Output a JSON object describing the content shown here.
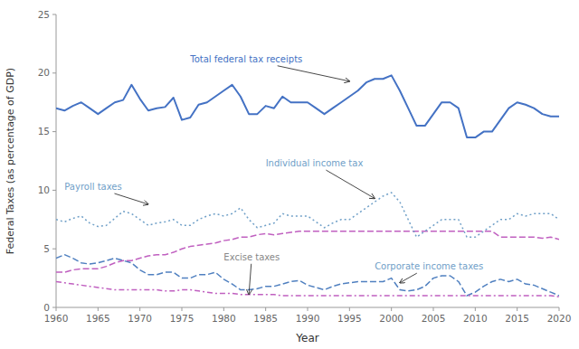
{
  "chart_data": {
    "type": "line",
    "xlabel": "Year",
    "ylabel": "Federal Taxes (as percentage of GDP)",
    "x": [
      1960,
      1961,
      1962,
      1963,
      1964,
      1965,
      1966,
      1967,
      1968,
      1969,
      1970,
      1971,
      1972,
      1973,
      1974,
      1975,
      1976,
      1977,
      1978,
      1979,
      1980,
      1981,
      1982,
      1983,
      1984,
      1985,
      1986,
      1987,
      1988,
      1989,
      1990,
      1991,
      1992,
      1993,
      1994,
      1995,
      1996,
      1997,
      1998,
      1999,
      2000,
      2001,
      2002,
      2003,
      2004,
      2005,
      2006,
      2007,
      2008,
      2009,
      2010,
      2011,
      2012,
      2013,
      2014,
      2015,
      2016,
      2017,
      2018,
      2019,
      2020
    ],
    "series": [
      {
        "color": "#4472c4",
        "line_style": "solid",
        "values": [
          17.0,
          16.8,
          17.2,
          17.5,
          17.0,
          16.5,
          17.0,
          17.5,
          17.7,
          19.0,
          17.8,
          16.8,
          17.0,
          17.1,
          17.9,
          16.0,
          16.2,
          17.3,
          17.5,
          18.0,
          18.5,
          19.0,
          18.0,
          16.5,
          16.5,
          17.2,
          17.0,
          18.0,
          17.5,
          17.5,
          17.5,
          17.0,
          16.5,
          17.0,
          17.5,
          18.0,
          18.5,
          19.2,
          19.5,
          19.5,
          19.8,
          18.5,
          17.0,
          15.5,
          15.5,
          16.5,
          17.5,
          17.5,
          17.0,
          14.5,
          14.5,
          15.0,
          15.0,
          16.0,
          17.0,
          17.5,
          17.3,
          17.0,
          16.5,
          16.3,
          16.3
        ]
      },
      {
        "color": "#70a0c8",
        "line_style": "dotted",
        "values": [
          7.5,
          7.3,
          7.6,
          7.8,
          7.2,
          6.9,
          7.0,
          7.6,
          8.2,
          8.0,
          7.5,
          7.0,
          7.2,
          7.3,
          7.5,
          7.0,
          7.0,
          7.5,
          7.8,
          8.0,
          7.8,
          8.0,
          8.5,
          7.5,
          6.8,
          7.0,
          7.2,
          8.0,
          7.8,
          7.8,
          7.8,
          7.3,
          6.8,
          7.2,
          7.5,
          7.5,
          8.0,
          8.5,
          9.0,
          9.5,
          9.8,
          9.0,
          7.5,
          6.0,
          6.5,
          7.0,
          7.5,
          7.5,
          7.5,
          6.0,
          6.0,
          6.5,
          7.0,
          7.5,
          7.5,
          8.0,
          7.8,
          8.0,
          8.0,
          8.0,
          7.5
        ]
      },
      {
        "color": "#c060c0",
        "line_style": "dashed",
        "values": [
          3.0,
          3.0,
          3.2,
          3.3,
          3.3,
          3.3,
          3.5,
          3.8,
          4.0,
          4.0,
          4.2,
          4.4,
          4.5,
          4.5,
          4.7,
          5.0,
          5.2,
          5.3,
          5.4,
          5.5,
          5.7,
          5.8,
          6.0,
          6.0,
          6.2,
          6.3,
          6.2,
          6.3,
          6.4,
          6.5,
          6.5,
          6.5,
          6.5,
          6.5,
          6.5,
          6.5,
          6.5,
          6.5,
          6.5,
          6.5,
          6.5,
          6.5,
          6.5,
          6.5,
          6.5,
          6.5,
          6.5,
          6.5,
          6.5,
          6.5,
          6.5,
          6.5,
          6.5,
          6.0,
          6.0,
          6.0,
          6.0,
          6.0,
          5.9,
          6.0,
          5.8
        ]
      },
      {
        "color": "#c060c0",
        "line_style": "dashdot",
        "values": [
          2.2,
          2.1,
          2.0,
          1.9,
          1.8,
          1.7,
          1.6,
          1.5,
          1.5,
          1.5,
          1.5,
          1.5,
          1.5,
          1.4,
          1.4,
          1.5,
          1.5,
          1.4,
          1.3,
          1.2,
          1.2,
          1.2,
          1.1,
          1.1,
          1.1,
          1.1,
          1.1,
          1.0,
          1.0,
          1.0,
          1.0,
          1.0,
          1.0,
          1.0,
          1.0,
          1.0,
          1.0,
          1.0,
          1.0,
          1.0,
          1.0,
          1.0,
          1.0,
          1.0,
          1.0,
          1.0,
          1.0,
          1.0,
          1.0,
          1.0,
          1.0,
          1.0,
          1.0,
          1.0,
          1.0,
          1.0,
          1.0,
          1.0,
          1.0,
          1.0,
          0.9
        ]
      },
      {
        "color": "#5080c0",
        "line_style": "dashed",
        "values": [
          4.2,
          4.5,
          4.2,
          3.8,
          3.7,
          3.8,
          4.0,
          4.2,
          4.0,
          3.8,
          3.2,
          2.8,
          2.8,
          3.0,
          3.0,
          2.5,
          2.5,
          2.8,
          2.8,
          3.0,
          2.4,
          2.0,
          1.5,
          1.5,
          1.6,
          1.8,
          1.8,
          2.0,
          2.2,
          2.3,
          1.9,
          1.7,
          1.5,
          1.8,
          2.0,
          2.1,
          2.2,
          2.2,
          2.2,
          2.2,
          2.5,
          1.5,
          1.4,
          1.5,
          1.8,
          2.5,
          2.7,
          2.7,
          2.2,
          1.0,
          1.3,
          1.8,
          2.2,
          2.4,
          2.2,
          2.4,
          2.0,
          1.9,
          1.6,
          1.3,
          1.0
        ]
      }
    ],
    "annotations": [
      {
        "text": "Total federal tax receipts",
        "xy": [
          1995,
          19.3
        ],
        "xytext": [
          1976,
          21.2
        ],
        "color": "#4472c4"
      },
      {
        "text": "Individual income tax",
        "xy": [
          1998,
          9.3
        ],
        "xytext": [
          1985,
          12.3
        ],
        "color": "#70a0c8"
      },
      {
        "text": "Payroll taxes",
        "xy": [
          1971,
          8.8
        ],
        "xytext": [
          1961,
          10.3
        ],
        "color": "#70a0c8"
      },
      {
        "text": "Excise taxes",
        "xy": [
          1983,
          1.1
        ],
        "xytext": [
          1980,
          4.3
        ],
        "color": "#888888"
      },
      {
        "text": "Corporate income taxes",
        "xy": [
          2001,
          2.1
        ],
        "xytext": [
          1998,
          3.5
        ],
        "color": "#70a0c8"
      }
    ],
    "xlim": [
      1960,
      2020
    ],
    "ylim": [
      0,
      25
    ],
    "xticks": [
      1960,
      1965,
      1970,
      1975,
      1980,
      1985,
      1990,
      1995,
      2000,
      2005,
      2010,
      2015,
      2020
    ],
    "yticks": [
      0,
      5,
      10,
      15,
      20,
      25
    ],
    "grid": false
  }
}
